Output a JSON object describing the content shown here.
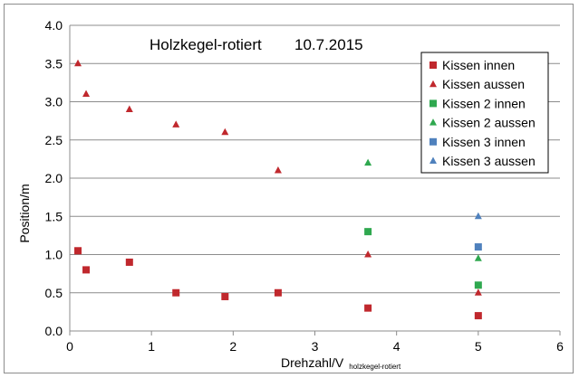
{
  "chart_data": {
    "type": "scatter",
    "title": "Holzkegel-rotiert",
    "date": "10.7.2015",
    "xlabel": "Drehzahl/V",
    "xlabel_subscript": "holzkegel-rotiert",
    "ylabel": "Position/m",
    "xlim": [
      0,
      6
    ],
    "ylim": [
      0,
      4
    ],
    "x_ticks": [
      "0",
      "1",
      "2",
      "3",
      "4",
      "5",
      "6"
    ],
    "y_ticks": [
      "0.0",
      "0.5",
      "1.0",
      "1.5",
      "2.0",
      "2.5",
      "3.0",
      "3.5",
      "4.0"
    ],
    "grid": "horizontal",
    "legend_position": "right",
    "series": [
      {
        "name": "Kissen innen",
        "marker": "square",
        "color": "#c0282d",
        "points": [
          [
            0.1,
            1.05
          ],
          [
            0.2,
            0.8
          ],
          [
            0.73,
            0.9
          ],
          [
            1.3,
            0.5
          ],
          [
            1.9,
            0.45
          ],
          [
            2.55,
            0.5
          ],
          [
            3.65,
            0.3
          ],
          [
            5.0,
            0.2
          ]
        ]
      },
      {
        "name": "Kissen aussen",
        "marker": "triangle",
        "color": "#c0282d",
        "points": [
          [
            0.1,
            3.5
          ],
          [
            0.2,
            3.1
          ],
          [
            0.73,
            2.9
          ],
          [
            1.3,
            2.7
          ],
          [
            1.9,
            2.6
          ],
          [
            2.55,
            2.1
          ],
          [
            3.65,
            1.0
          ],
          [
            5.0,
            0.5
          ]
        ]
      },
      {
        "name": "Kissen 2 innen",
        "marker": "square",
        "color": "#2fa84f",
        "points": [
          [
            3.65,
            1.3
          ],
          [
            5.0,
            0.6
          ]
        ]
      },
      {
        "name": "Kissen 2 aussen",
        "marker": "triangle",
        "color": "#2fa84f",
        "points": [
          [
            3.65,
            2.2
          ],
          [
            5.0,
            0.95
          ]
        ]
      },
      {
        "name": "Kissen 3 innen",
        "marker": "square",
        "color": "#4f81bd",
        "points": [
          [
            5.0,
            1.1
          ]
        ]
      },
      {
        "name": "Kissen 3 aussen",
        "marker": "triangle",
        "color": "#4f81bd",
        "points": [
          [
            5.0,
            1.5
          ]
        ]
      }
    ]
  }
}
